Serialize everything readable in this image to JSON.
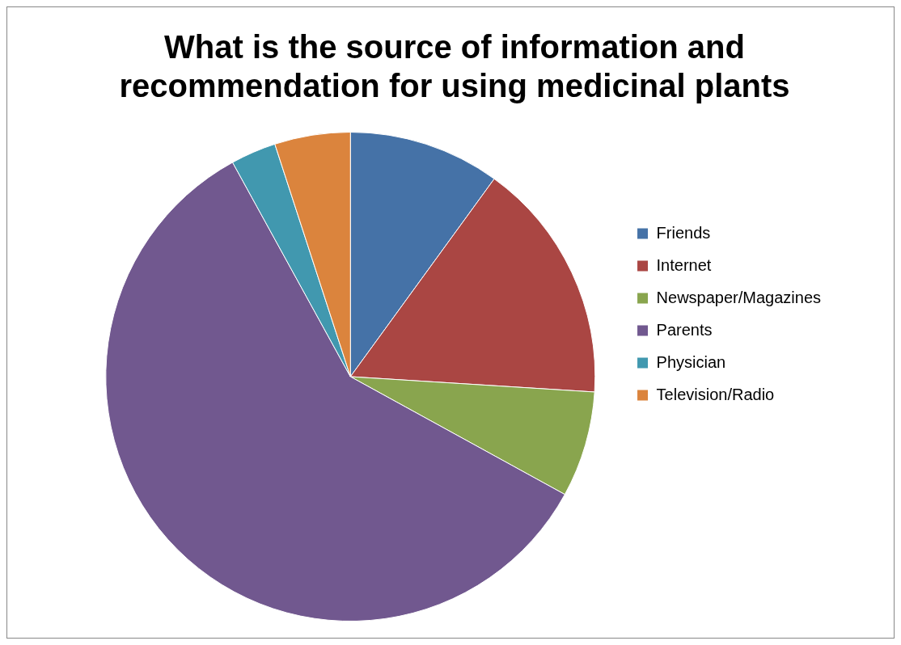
{
  "chart_data": {
    "type": "pie",
    "title": "What is the source of information and recommendation for using medicinal plants",
    "categories": [
      "Friends",
      "Internet",
      "Newspaper/Magazines",
      "Parents",
      "Physician",
      "Television/Radio"
    ],
    "values": [
      10,
      16,
      7,
      59,
      3,
      5
    ],
    "colors": [
      "#4572a7",
      "#aa4643",
      "#89a54e",
      "#71588f",
      "#4198af",
      "#db843d"
    ],
    "legend": "right"
  }
}
